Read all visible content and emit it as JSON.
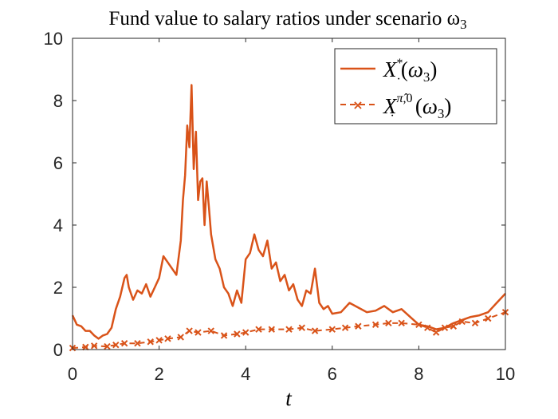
{
  "chart_data": {
    "type": "line",
    "title": "Fund value to salary ratios under scenario ω₃",
    "xlabel": "t",
    "ylabel": "",
    "xlim": [
      0,
      10
    ],
    "ylim": [
      0,
      10
    ],
    "xticks": [
      "0",
      "2",
      "4",
      "6",
      "8",
      "10"
    ],
    "yticks": [
      "0",
      "2",
      "4",
      "6",
      "8",
      "10"
    ],
    "grid": false,
    "legend_position": "top-right",
    "colors": {
      "series": "#d95319",
      "axes": "#262626"
    },
    "series": [
      {
        "name": "X·*(ω₃)",
        "style": "solid",
        "x": [
          0,
          0.1,
          0.2,
          0.3,
          0.4,
          0.5,
          0.6,
          0.7,
          0.8,
          0.9,
          1.0,
          1.1,
          1.2,
          1.25,
          1.3,
          1.4,
          1.5,
          1.6,
          1.7,
          1.8,
          1.9,
          2.0,
          2.1,
          2.2,
          2.3,
          2.4,
          2.5,
          2.55,
          2.6,
          2.65,
          2.7,
          2.75,
          2.8,
          2.85,
          2.9,
          2.95,
          3.0,
          3.05,
          3.1,
          3.15,
          3.2,
          3.3,
          3.4,
          3.5,
          3.6,
          3.7,
          3.8,
          3.9,
          4.0,
          4.1,
          4.2,
          4.3,
          4.4,
          4.5,
          4.6,
          4.7,
          4.8,
          4.9,
          5.0,
          5.1,
          5.2,
          5.3,
          5.4,
          5.5,
          5.6,
          5.7,
          5.8,
          5.9,
          6.0,
          6.2,
          6.4,
          6.6,
          6.8,
          7.0,
          7.2,
          7.4,
          7.6,
          7.8,
          8.0,
          8.2,
          8.4,
          8.6,
          8.8,
          9.0,
          9.2,
          9.4,
          9.6,
          9.8,
          10.0
        ],
        "y": [
          1.1,
          0.8,
          0.75,
          0.6,
          0.6,
          0.45,
          0.35,
          0.45,
          0.5,
          0.7,
          1.3,
          1.7,
          2.3,
          2.4,
          2.0,
          1.6,
          1.9,
          1.8,
          2.1,
          1.7,
          2.0,
          2.3,
          3.0,
          2.8,
          2.6,
          2.4,
          3.5,
          4.8,
          5.6,
          7.2,
          6.5,
          8.5,
          5.8,
          7.0,
          4.8,
          5.4,
          5.5,
          4.0,
          5.4,
          4.6,
          3.7,
          2.9,
          2.6,
          2.0,
          1.8,
          1.4,
          1.9,
          1.5,
          2.9,
          3.1,
          3.7,
          3.2,
          3.0,
          3.5,
          2.6,
          2.8,
          2.2,
          2.4,
          1.9,
          2.1,
          1.6,
          1.4,
          1.9,
          1.8,
          2.6,
          1.5,
          1.3,
          1.4,
          1.15,
          1.2,
          1.5,
          1.35,
          1.2,
          1.25,
          1.4,
          1.2,
          1.3,
          1.05,
          0.8,
          0.75,
          0.65,
          0.7,
          0.85,
          0.95,
          1.05,
          1.1,
          1.2,
          1.5,
          1.8
        ]
      },
      {
        "name": "X·^{π̂,0}(ω₃)",
        "style": "dashed-x",
        "x": [
          0,
          0.3,
          0.5,
          0.8,
          1.0,
          1.2,
          1.5,
          1.8,
          2.0,
          2.2,
          2.5,
          2.7,
          2.9,
          3.2,
          3.5,
          3.8,
          4.0,
          4.3,
          4.6,
          5.0,
          5.3,
          5.6,
          6.0,
          6.3,
          6.6,
          7.0,
          7.3,
          7.6,
          8.0,
          8.2,
          8.4,
          8.6,
          8.8,
          9.0,
          9.3,
          9.6,
          10.0
        ],
        "y": [
          0.05,
          0.08,
          0.12,
          0.1,
          0.15,
          0.2,
          0.2,
          0.25,
          0.3,
          0.35,
          0.4,
          0.6,
          0.55,
          0.6,
          0.45,
          0.5,
          0.55,
          0.65,
          0.65,
          0.65,
          0.7,
          0.6,
          0.65,
          0.7,
          0.75,
          0.8,
          0.85,
          0.85,
          0.8,
          0.7,
          0.55,
          0.7,
          0.75,
          0.9,
          0.85,
          1.0,
          1.2
        ]
      }
    ]
  }
}
